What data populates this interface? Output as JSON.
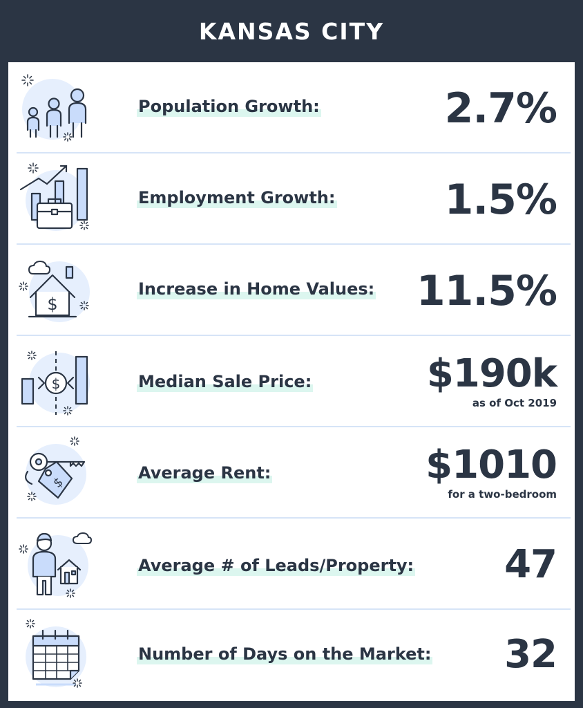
{
  "title": "KANSAS CITY",
  "colors": {
    "dark": "#2b3544",
    "accent_blue": "#c9dcfb",
    "icon_bg": "#e6effd",
    "highlight": "#dcf6ef",
    "divider": "#d6e4f7"
  },
  "stats": [
    {
      "icon": "people-icon",
      "label": "Population Growth:",
      "value": "2.7%",
      "note": ""
    },
    {
      "icon": "briefcase-growth-icon",
      "label": "Employment Growth:",
      "value": "1.5%",
      "note": ""
    },
    {
      "icon": "house-dollar-icon",
      "label": "Increase in Home Values:",
      "value": "11.5%",
      "note": ""
    },
    {
      "icon": "price-exchange-icon",
      "label": "Median Sale Price:",
      "value": "$190k",
      "note": "as of Oct 2019"
    },
    {
      "icon": "key-tag-icon",
      "label": "Average Rent:",
      "value": "$1010",
      "note": "for a two-bedroom"
    },
    {
      "icon": "person-house-icon",
      "label": "Average # of Leads/Property:",
      "value": "47",
      "note": ""
    },
    {
      "icon": "calendar-icon",
      "label": "Number of Days on the Market:",
      "value": "32",
      "note": ""
    }
  ]
}
